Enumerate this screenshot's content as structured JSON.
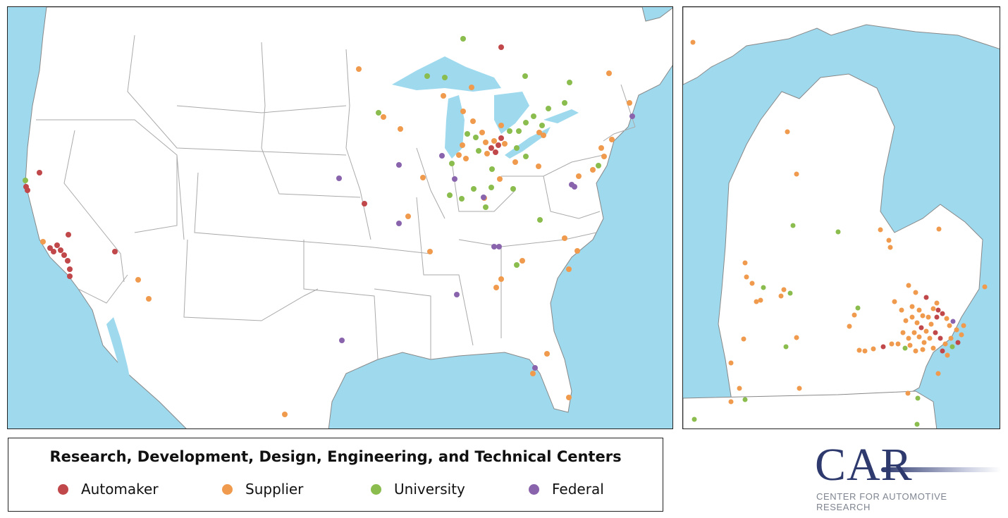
{
  "legend": {
    "title": "Research, Development, Design, Engineering, and Technical Centers",
    "items": [
      {
        "label": "Automaker",
        "color": "#c0474a"
      },
      {
        "label": "Supplier",
        "color": "#f09a4d"
      },
      {
        "label": "University",
        "color": "#8bbd4e"
      },
      {
        "label": "Federal",
        "color": "#8a63ad"
      }
    ]
  },
  "logo": {
    "name": "CAR",
    "subtitle": "CENTER FOR AUTOMOTIVE RESEARCH"
  },
  "colors": {
    "water": "#9ed9ee",
    "land": "#ffffff",
    "borders": "#9a9a9a"
  }
}
